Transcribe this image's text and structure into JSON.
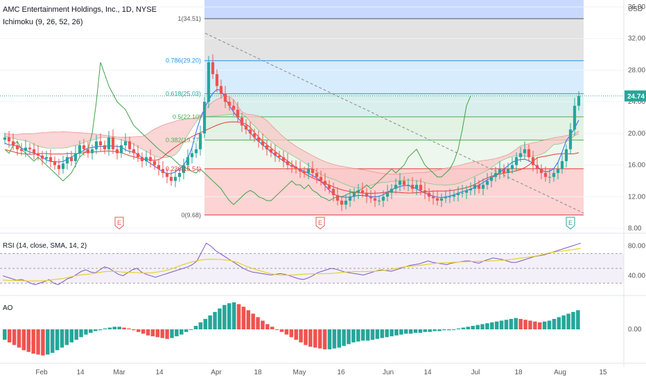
{
  "header": {
    "title": "AMC Entertainment Holdings, Inc., 1D, NYSE",
    "indicator": "Ichimoku (9, 26, 52, 26)",
    "currency": "USD"
  },
  "colors": {
    "up": "#26a69a",
    "down": "#ef5350",
    "tenkan": "#2962ff",
    "kijun": "#e53935",
    "chikou": "#43a047",
    "cloud_bear": "#f8c8c8",
    "cloud_bull": "#c8e6c9",
    "rsi_line": "#7e57c2",
    "rsi_ma": "#e6d12a",
    "last_price_bg": "#26a69a"
  },
  "chart_data": [
    {
      "type": "candlestick",
      "name": "price",
      "x_ticks": [
        "Feb",
        "14",
        "Mar",
        "14",
        "Apr",
        "18",
        "May",
        "16",
        "Jun",
        "14",
        "Jul",
        "18",
        "Aug",
        "15"
      ],
      "y_ticks": [
        "36.00",
        "32.00",
        "28.00",
        "24.00",
        "20.00",
        "16.00",
        "12.00",
        "8.00"
      ],
      "ylim": [
        8,
        36
      ],
      "last_price": "24.74",
      "fib_levels": [
        {
          "label": "1(34.51)",
          "value": 34.51
        },
        {
          "label": "0.786(29.20)",
          "value": 29.2
        },
        {
          "label": "0.618(25.03)",
          "value": 25.03
        },
        {
          "label": "0.5(22.10)",
          "value": 22.1
        },
        {
          "label": "0.382(19.17)",
          "value": 19.17
        },
        {
          "label": "0.236(15.54)",
          "value": 15.54
        },
        {
          "label": "0(9.68)",
          "value": 9.68
        }
      ],
      "earnings_markers": [
        "E",
        "E",
        "E"
      ],
      "close": [
        19.5,
        19.0,
        18.5,
        18.0,
        17.8,
        18.2,
        18.0,
        17.5,
        17.2,
        16.8,
        17.0,
        16.5,
        16.0,
        15.5,
        16.2,
        17.0,
        16.5,
        17.5,
        18.5,
        18.0,
        17.5,
        18.0,
        19.0,
        18.5,
        18.0,
        19.5,
        18.0,
        17.5,
        18.5,
        19.0,
        18.0,
        17.5,
        17.0,
        16.5,
        17.0,
        16.5,
        16.0,
        15.5,
        15.0,
        14.5,
        14.0,
        14.5,
        15.0,
        16.0,
        17.0,
        17.5,
        18.0,
        20.0,
        24.0,
        29.0,
        27.5,
        26.0,
        25.0,
        24.0,
        23.5,
        23.0,
        22.0,
        21.0,
        20.5,
        20.0,
        19.5,
        19.0,
        18.5,
        18.0,
        17.6,
        17.2,
        17.0,
        16.5,
        16.0,
        15.8,
        15.5,
        15.2,
        15.0,
        15.5,
        15.0,
        14.5,
        14.0,
        13.5,
        13.0,
        12.2,
        11.5,
        11.0,
        11.5,
        12.0,
        12.5,
        12.8,
        12.5,
        12.0,
        11.8,
        11.5,
        11.5,
        12.0,
        12.5,
        13.0,
        13.5,
        14.0,
        13.5,
        13.5,
        13.0,
        13.5,
        12.8,
        12.5,
        12.0,
        11.8,
        11.5,
        11.8,
        12.0,
        12.0,
        12.2,
        12.5,
        12.5,
        12.8,
        13.0,
        13.5,
        13.0,
        13.5,
        14.0,
        14.5,
        15.0,
        15.5,
        15.0,
        15.5,
        16.0,
        17.0,
        17.5,
        18.0,
        17.0,
        16.0,
        15.5,
        15.0,
        14.5,
        14.5,
        15.0,
        15.5,
        16.5,
        18.0,
        20.5,
        23.5,
        24.74
      ]
    },
    {
      "type": "line",
      "name": "RSI (14, close, SMA, 14, 2)",
      "y_ticks": [
        "80.00",
        "40.00"
      ],
      "ylim": [
        20,
        90
      ],
      "upper_band": 70,
      "middle_band": 50,
      "lower_band": 30,
      "values": [
        40,
        38,
        36,
        34,
        35,
        33,
        30,
        28,
        30,
        32,
        35,
        30,
        28,
        32,
        36,
        38,
        42,
        46,
        48,
        45,
        44,
        48,
        52,
        50,
        46,
        42,
        40,
        44,
        48,
        50,
        45,
        42,
        40,
        38,
        40,
        42,
        44,
        46,
        48,
        50,
        52,
        55,
        60,
        72,
        84,
        80,
        74,
        70,
        66,
        62,
        58,
        54,
        50,
        47,
        45,
        44,
        43,
        42,
        41,
        42,
        43,
        42,
        40,
        38,
        36,
        35,
        37,
        40,
        44,
        46,
        48,
        50,
        49,
        47,
        45,
        44,
        43,
        42,
        41,
        43,
        45,
        47,
        48,
        47,
        46,
        48,
        50,
        52,
        54,
        55,
        56,
        58,
        60,
        58,
        57,
        56,
        55,
        57,
        58,
        59,
        60,
        60,
        58,
        57,
        60,
        62,
        64,
        63,
        62,
        60,
        58,
        58,
        60,
        62,
        64,
        66,
        67,
        68,
        70,
        72,
        74,
        76,
        78,
        80,
        82,
        84
      ]
    },
    {
      "type": "histogram",
      "name": "AO",
      "y_ticks": [
        "0.00"
      ],
      "ylim": [
        -3.5,
        3.5
      ],
      "values": [
        -1.2,
        -1.5,
        -1.8,
        -2.1,
        -2.4,
        -2.6,
        -2.8,
        -2.9,
        -3.0,
        -2.9,
        -2.7,
        -2.4,
        -2.1,
        -1.8,
        -1.5,
        -1.2,
        -0.9,
        -0.6,
        -0.4,
        -0.2,
        -0.1,
        0.1,
        0.2,
        0.3,
        0.3,
        0.2,
        0.1,
        -0.1,
        -0.3,
        -0.5,
        -0.7,
        -0.8,
        -0.9,
        -1.0,
        -1.1,
        -1.0,
        -0.8,
        -0.6,
        -0.3,
        0.0,
        0.4,
        0.8,
        1.2,
        1.6,
        2.0,
        2.4,
        2.8,
        3.0,
        3.1,
        2.9,
        2.6,
        2.2,
        1.8,
        1.4,
        1.0,
        0.6,
        0.3,
        0.0,
        -0.3,
        -0.6,
        -0.9,
        -1.2,
        -1.5,
        -1.8,
        -2.0,
        -2.1,
        -2.2,
        -2.3,
        -2.3,
        -2.2,
        -2.1,
        -1.9,
        -1.7,
        -1.5,
        -1.4,
        -1.3,
        -1.3,
        -1.2,
        -1.1,
        -1.0,
        -0.9,
        -0.8,
        -0.7,
        -0.6,
        -0.5,
        -0.5,
        -0.4,
        -0.4,
        -0.3,
        -0.3,
        -0.2,
        -0.2,
        -0.1,
        -0.1,
        0.0,
        0.1,
        0.2,
        0.3,
        0.4,
        0.5,
        0.6,
        0.7,
        0.8,
        0.9,
        1.0,
        1.1,
        1.2,
        1.3,
        1.2,
        1.1,
        1.0,
        0.9,
        0.8,
        0.9,
        1.0,
        1.2,
        1.4,
        1.6,
        1.8,
        2.0,
        2.2
      ]
    }
  ]
}
